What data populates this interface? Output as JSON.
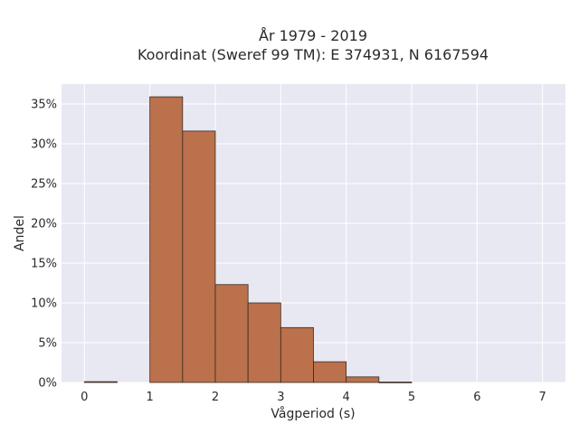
{
  "chart_data": {
    "type": "bar",
    "title_line1": "År 1979 - 2019",
    "title_line2": "Koordinat (Sweref 99 TM): E 374931, N 6167594",
    "xlabel": "Vågperiod (s)",
    "ylabel": "Andel",
    "xlim": [
      -0.35,
      7.35
    ],
    "ylim": [
      0,
      0.375
    ],
    "x_ticks": [
      0,
      1,
      2,
      3,
      4,
      5,
      6,
      7
    ],
    "x_tick_labels": [
      "0",
      "1",
      "2",
      "3",
      "4",
      "5",
      "6",
      "7"
    ],
    "y_ticks": [
      0,
      0.05,
      0.1,
      0.15,
      0.2,
      0.25,
      0.3,
      0.35
    ],
    "y_tick_labels": [
      "0%",
      "5%",
      "10%",
      "15%",
      "20%",
      "25%",
      "30%",
      "35%"
    ],
    "bin_width": 0.5,
    "bins": [
      {
        "x0": 0.0,
        "x1": 0.5,
        "value": 0.001
      },
      {
        "x0": 0.5,
        "x1": 1.0,
        "value": 0.0
      },
      {
        "x0": 1.0,
        "x1": 1.5,
        "value": 0.359
      },
      {
        "x0": 1.5,
        "x1": 2.0,
        "value": 0.316
      },
      {
        "x0": 2.0,
        "x1": 2.5,
        "value": 0.123
      },
      {
        "x0": 2.5,
        "x1": 3.0,
        "value": 0.1
      },
      {
        "x0": 3.0,
        "x1": 3.5,
        "value": 0.069
      },
      {
        "x0": 3.5,
        "x1": 4.0,
        "value": 0.026
      },
      {
        "x0": 4.0,
        "x1": 4.5,
        "value": 0.007
      },
      {
        "x0": 4.5,
        "x1": 5.0,
        "value": 0.0005
      }
    ],
    "grid": true,
    "bar_color": "#b5643a",
    "bar_edge_color": "#3a2a20",
    "plot_bg": "#e8e8f2",
    "grid_color": "#ffffff"
  }
}
